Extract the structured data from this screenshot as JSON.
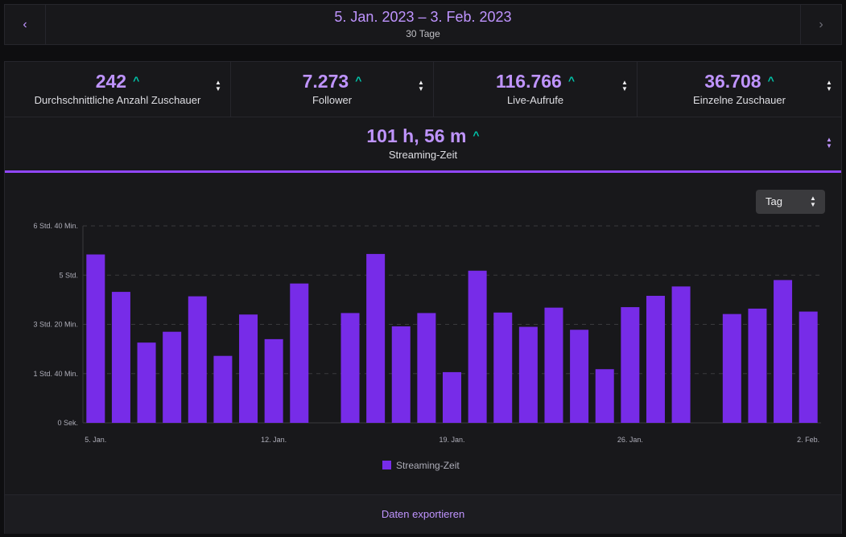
{
  "header": {
    "prev_icon": "chevron-left-icon",
    "next_icon": "chevron-right-icon",
    "prev_glyph": "‹",
    "next_glyph": "›",
    "date_range": "5. Jan. 2023 – 3. Feb. 2023",
    "period": "30 Tage"
  },
  "stats": [
    {
      "value": "242",
      "label": "Durchschnittliche Anzahl Zuschauer"
    },
    {
      "value": "7.273",
      "label": "Follower"
    },
    {
      "value": "116.766",
      "label": "Live-Aufrufe"
    },
    {
      "value": "36.708",
      "label": "Einzelne Zuschauer"
    }
  ],
  "streaming_time": {
    "value": "101 h, 56 m",
    "label": "Streaming-Zeit"
  },
  "trend_glyph": "^",
  "granularity_select": {
    "value": "Tag"
  },
  "footer": {
    "export_label": "Daten exportieren"
  },
  "colors": {
    "accent": "#9147ff",
    "bar": "#772ce8",
    "positive": "#00c7ac"
  },
  "chart_data": {
    "type": "bar",
    "y_unit": "minutes",
    "ylim": [
      0,
      400
    ],
    "y_ticks": [
      {
        "value": 0,
        "label": "0 Sek."
      },
      {
        "value": 100,
        "label": "1 Std. 40 Min."
      },
      {
        "value": 200,
        "label": "3 Std. 20 Min."
      },
      {
        "value": 300,
        "label": "5 Std."
      },
      {
        "value": 400,
        "label": "6 Std. 40 Min."
      }
    ],
    "x_ticks": [
      "5. Jan.",
      "12. Jan.",
      "19. Jan.",
      "26. Jan.",
      "2. Feb."
    ],
    "categories": [
      "5. Jan.",
      "6. Jan.",
      "7. Jan.",
      "8. Jan.",
      "9. Jan.",
      "10. Jan.",
      "11. Jan.",
      "12. Jan.",
      "13. Jan.",
      "14. Jan.",
      "15. Jan.",
      "16. Jan.",
      "17. Jan.",
      "18. Jan.",
      "19. Jan.",
      "20. Jan.",
      "21. Jan.",
      "22. Jan.",
      "23. Jan.",
      "24. Jan.",
      "25. Jan.",
      "26. Jan.",
      "27. Jan.",
      "28. Jan.",
      "29. Jan.",
      "30. Jan.",
      "31. Jan.",
      "1. Feb.",
      "2. Feb."
    ],
    "series": [
      {
        "name": "Streaming-Zeit",
        "values": [
          342,
          266,
          163,
          185,
          257,
          136,
          220,
          170,
          283,
          0,
          223,
          343,
          196,
          223,
          103,
          309,
          224,
          195,
          234,
          189,
          109,
          235,
          258,
          277,
          0,
          221,
          232,
          290,
          226
        ]
      }
    ],
    "grid": true,
    "legend": "bottom-center"
  }
}
